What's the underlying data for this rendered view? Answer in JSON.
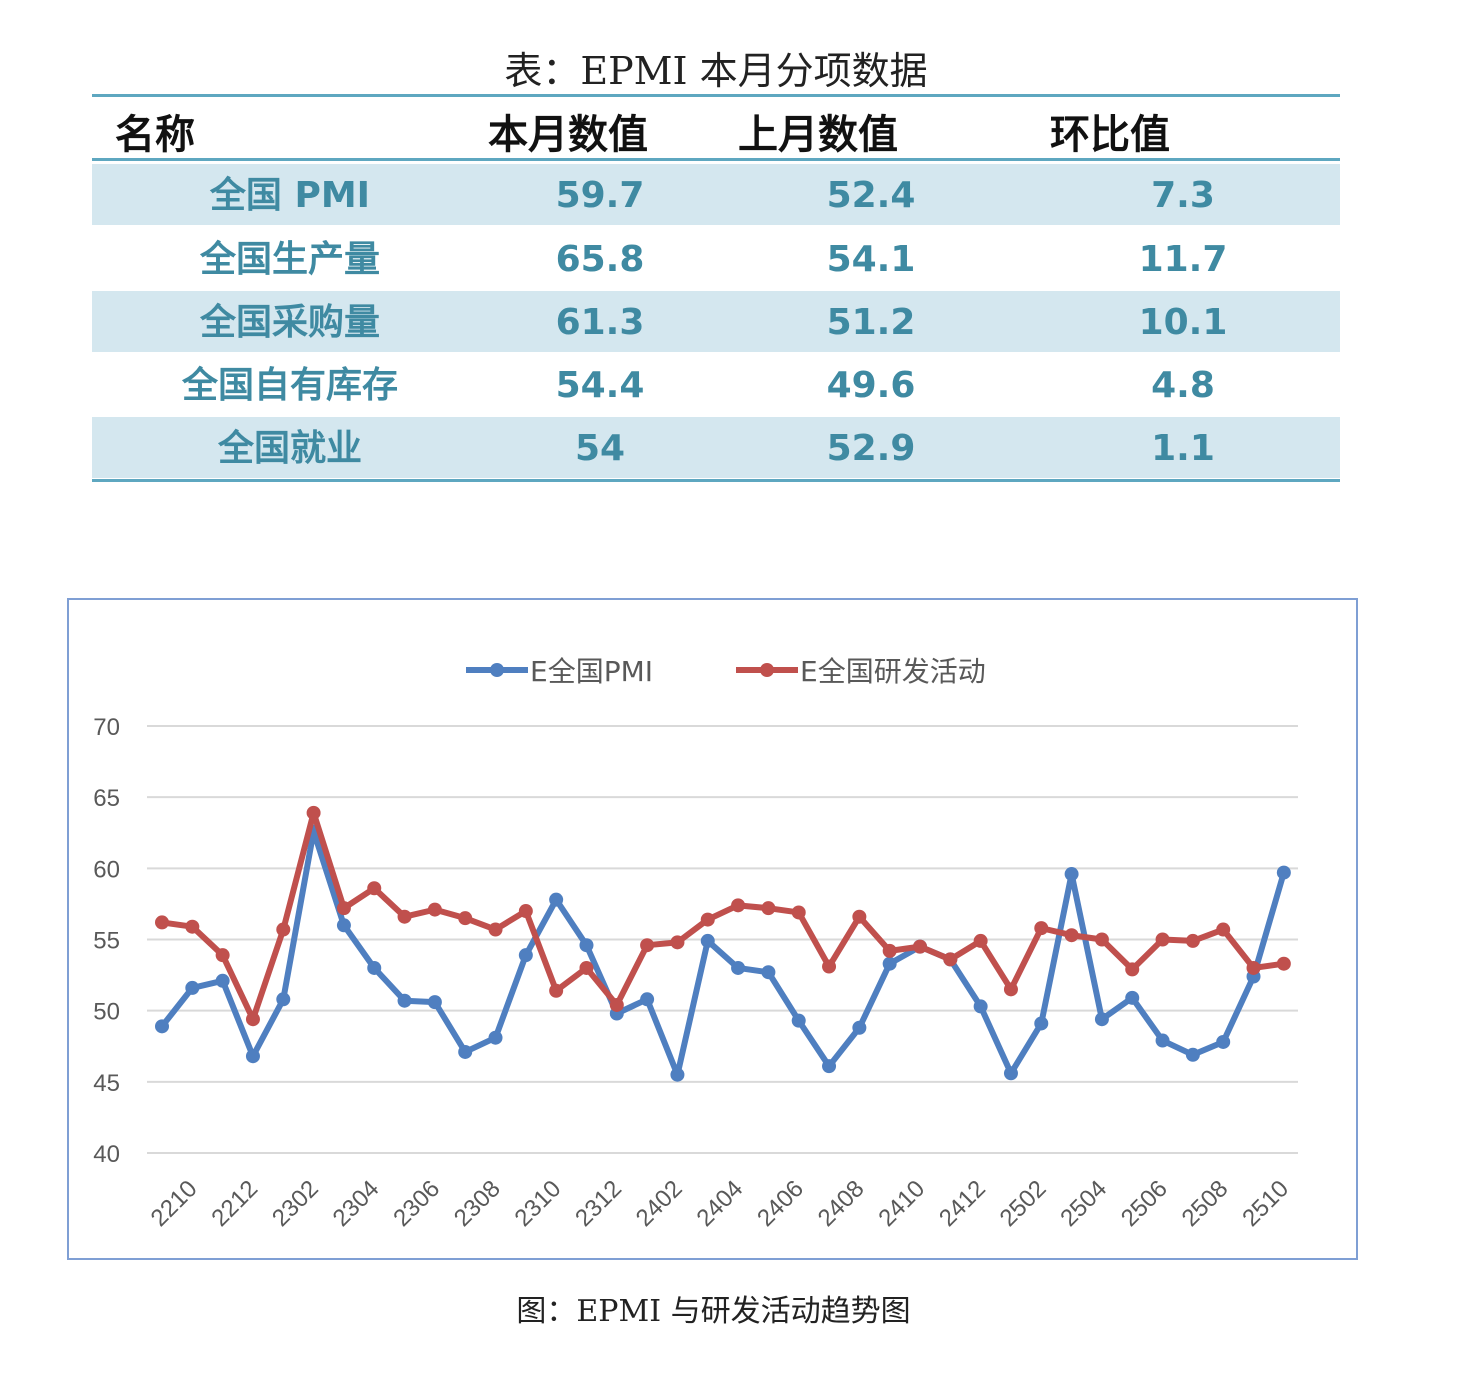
{
  "table": {
    "title": "表：EPMI 本月分项数据",
    "headers": [
      "名称",
      "本月数值",
      "上月数值",
      "环比值"
    ],
    "rows": [
      {
        "name": "全国 PMI",
        "current": "59.7",
        "previous": "52.4",
        "mom": "7.3"
      },
      {
        "name": "全国生产量",
        "current": "65.8",
        "previous": "54.1",
        "mom": "11.7"
      },
      {
        "name": "全国采购量",
        "current": "61.3",
        "previous": "51.2",
        "mom": "10.1"
      },
      {
        "name": "全国自有库存",
        "current": "54.4",
        "previous": "49.6",
        "mom": "4.8"
      },
      {
        "name": "全国就业",
        "current": "54",
        "previous": "52.9",
        "mom": "1.1"
      }
    ],
    "colors": {
      "shade": "#d4e7ef",
      "text": "#3f8aa2",
      "rule": "#5ea7c0"
    }
  },
  "chart_data": {
    "type": "line",
    "title": "",
    "caption": "图：EPMI 与研发活动趋势图",
    "xlabel": "",
    "ylabel": "",
    "ylim": [
      40,
      70
    ],
    "yticks": [
      "40",
      "45",
      "50",
      "55",
      "60",
      "65",
      "70"
    ],
    "tick_labels": [
      "2210",
      "2212",
      "2302",
      "2304",
      "2306",
      "2308",
      "2310",
      "2312",
      "2402",
      "2404",
      "2406",
      "2408",
      "2410",
      "2412",
      "2502",
      "2504",
      "2506",
      "2508",
      "2510"
    ],
    "tick_label_first_point_index": 1,
    "tick_label_every": 2,
    "grid": true,
    "legend_position": "top-center",
    "series": [
      {
        "name": "E全国PMI",
        "color": "#4f7fc0",
        "values": [
          48.9,
          51.6,
          52.1,
          46.8,
          50.8,
          62.6,
          56.0,
          53.0,
          50.7,
          50.6,
          47.1,
          48.1,
          53.9,
          57.8,
          54.6,
          49.8,
          50.8,
          45.5,
          54.9,
          53.0,
          52.7,
          49.3,
          46.1,
          48.8,
          53.3,
          54.5,
          53.6,
          50.3,
          45.6,
          49.1,
          59.6,
          49.4,
          50.9,
          47.9,
          46.9,
          47.8,
          52.4,
          59.7
        ]
      },
      {
        "name": "E全国研发活动",
        "color": "#c0504d",
        "values": [
          56.2,
          55.9,
          53.9,
          49.4,
          55.7,
          63.9,
          57.2,
          58.6,
          56.6,
          57.1,
          56.5,
          55.7,
          57.0,
          51.4,
          53.0,
          50.4,
          54.6,
          54.8,
          56.4,
          57.4,
          57.2,
          56.9,
          53.1,
          56.6,
          54.2,
          54.5,
          53.6,
          54.9,
          51.5,
          55.8,
          55.3,
          55.0,
          52.9,
          55.0,
          54.9,
          55.7,
          53.0,
          53.3
        ]
      }
    ]
  }
}
